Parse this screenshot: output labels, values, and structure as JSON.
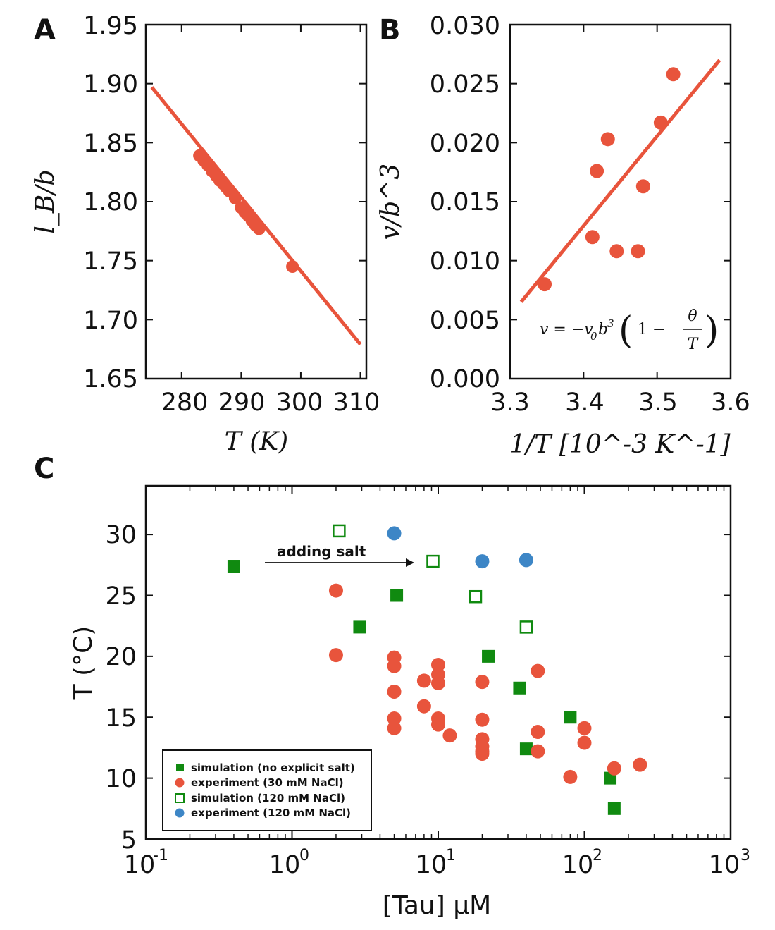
{
  "colors": {
    "red": "#e8543c",
    "green": "#108a10",
    "blue": "#3d86c6",
    "axis": "#111111"
  },
  "chart_data": [
    {
      "panel": "A",
      "type": "scatter",
      "xlabel": "T (K)",
      "ylabel": "l_B/b",
      "xlim": [
        274,
        311
      ],
      "ylim": [
        1.65,
        1.95
      ],
      "xticks": [
        "280",
        "290",
        "300",
        "310"
      ],
      "yticks": [
        "1.65",
        "1.70",
        "1.75",
        "1.80",
        "1.85",
        "1.90",
        "1.95"
      ],
      "fit_line": {
        "x": [
          275,
          310
        ],
        "y": [
          1.897,
          1.679
        ]
      },
      "points": {
        "x": [
          283,
          283.7,
          284.4,
          285.1,
          285.8,
          286.4,
          287,
          287.5,
          288,
          289,
          290,
          290.6,
          291.2,
          291.8,
          292.4,
          293,
          298.6
        ],
        "y": [
          1.839,
          1.835,
          1.831,
          1.826,
          1.822,
          1.818,
          1.815,
          1.812,
          1.809,
          1.803,
          1.795,
          1.791,
          1.788,
          1.784,
          1.78,
          1.777,
          1.745
        ]
      }
    },
    {
      "panel": "B",
      "type": "scatter",
      "xlabel": "1/T [10^-3 K^-1]",
      "ylabel": "v/b^3",
      "xlim": [
        3.31,
        3.6
      ],
      "ylim": [
        0.0,
        0.03
      ],
      "xticks": [
        "3.3",
        "3.4",
        "3.5",
        "3.6"
      ],
      "yticks": [
        "0.000",
        "0.005",
        "0.010",
        "0.015",
        "0.020",
        "0.025",
        "0.030"
      ],
      "fit_line": {
        "x": [
          3.315,
          3.585
        ],
        "y": [
          0.0065,
          0.027
        ]
      },
      "points": {
        "x": [
          3.347,
          3.412,
          3.418,
          3.433,
          3.445,
          3.474,
          3.481,
          3.505,
          3.522
        ],
        "y": [
          0.008,
          0.012,
          0.0176,
          0.0203,
          0.0108,
          0.0108,
          0.0163,
          0.0217,
          0.0258
        ]
      },
      "equation": {
        "lhs": "v = −v",
        "sub": "0",
        "b": "b",
        "sup": "3",
        "one": "1 −",
        "num": "θ",
        "den": "T"
      }
    },
    {
      "panel": "C",
      "type": "scatter",
      "xlabel": "[Tau] μM",
      "ylabel": "T (°C)",
      "xscale": "log",
      "xlim": [
        0.1,
        1000
      ],
      "ylim": [
        5,
        34
      ],
      "yticks": [
        "5",
        "10",
        "15",
        "20",
        "25",
        "30"
      ],
      "annotation": "adding salt",
      "series": [
        {
          "name": "simulation  (no explicit salt)",
          "marker": "square",
          "x": [
            0.4,
            2.9,
            5.2,
            22,
            36,
            40,
            80,
            150,
            160
          ],
          "y": [
            27.4,
            22.4,
            25,
            20,
            17.4,
            12.4,
            15,
            10,
            7.5
          ]
        },
        {
          "name": "experiment (30 mM NaCl)",
          "marker": "circle",
          "x": [
            2,
            2,
            5,
            5,
            5,
            5,
            5,
            8,
            8,
            10,
            10,
            10,
            10,
            10,
            12,
            20,
            20,
            20,
            20,
            20,
            20,
            48,
            48,
            48,
            80,
            100,
            100,
            160,
            240
          ],
          "y": [
            25.4,
            20.1,
            19.9,
            19.2,
            17.1,
            14.9,
            14.1,
            18.0,
            15.9,
            19.3,
            18.5,
            17.8,
            14.9,
            14.4,
            13.5,
            17.9,
            14.8,
            13.2,
            12.6,
            12.2,
            12.0,
            18.8,
            13.8,
            12.2,
            10.1,
            14.1,
            12.9,
            10.8,
            11.1
          ]
        },
        {
          "name": "simulation (120 mM NaCl)",
          "marker": "square-open",
          "x": [
            2.1,
            9.2,
            18,
            40
          ],
          "y": [
            30.3,
            27.8,
            24.9,
            22.4
          ]
        },
        {
          "name": "experiment (120 mM NaCl)",
          "marker": "circle-blue",
          "x": [
            5,
            20,
            40
          ],
          "y": [
            30.1,
            27.8,
            27.9
          ]
        }
      ]
    }
  ]
}
